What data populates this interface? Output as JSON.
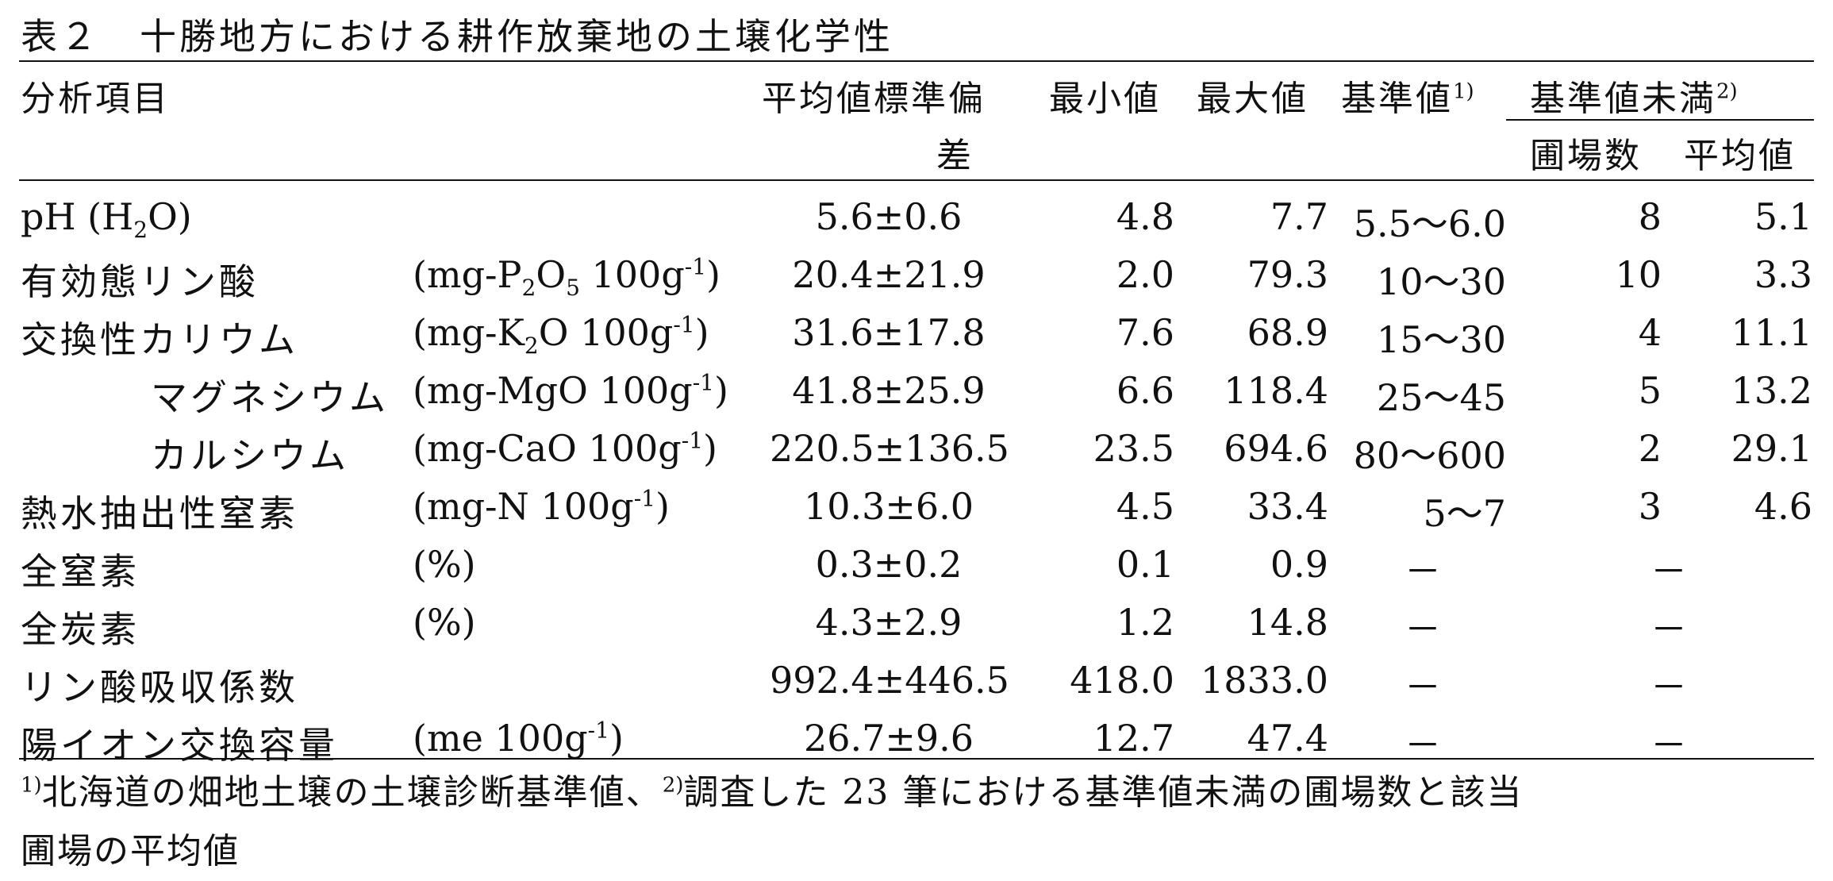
{
  "title": "表２　十勝地方における耕作放棄地の土壌化学性",
  "headers": {
    "item": "分析項目",
    "mean_sd_1": "平均値標準偏",
    "mean_sd_2": "差",
    "min": "最小値",
    "max": "最大値",
    "standard": "基準値",
    "standard_note": "1)",
    "below": "基準値未満",
    "below_note": "2)",
    "fields": "圃場数",
    "avg": "平均値"
  },
  "rows": [
    {
      "name": "pH (H",
      "name_sub": "2",
      "name_end": "O)",
      "unit_pre": "",
      "unit_sub": "",
      "unit_mid": "",
      "unit_sub2": "",
      "unit_post": "",
      "unit_sup": "",
      "unit_end": "",
      "mean": "5.6±0.6",
      "min": "4.8",
      "max": "7.7",
      "std": "5.5～6.0",
      "n": "8",
      "avg": "5.1",
      "indent": false,
      "latin": true
    },
    {
      "name": "有効態リン酸",
      "name_sub": "",
      "name_end": "",
      "unit_pre": "(mg-P",
      "unit_sub": "2",
      "unit_mid": "O",
      "unit_sub2": "5",
      "unit_post": " 100g",
      "unit_sup": "-1",
      "unit_end": ")",
      "mean": "20.4±21.9",
      "min": "2.0",
      "max": "79.3",
      "std": "10～30",
      "n": "10",
      "avg": "3.3",
      "indent": false,
      "latin": false
    },
    {
      "name": "交換性カリウム",
      "name_sub": "",
      "name_end": "",
      "unit_pre": "(mg-K",
      "unit_sub": "2",
      "unit_mid": "O",
      "unit_sub2": "",
      "unit_post": " 100g",
      "unit_sup": "-1",
      "unit_end": ")",
      "mean": "31.6±17.8",
      "min": "7.6",
      "max": "68.9",
      "std": "15～30",
      "n": "4",
      "avg": "11.1",
      "indent": false,
      "latin": false
    },
    {
      "name": "マグネシウム",
      "name_sub": "",
      "name_end": "",
      "unit_pre": "(mg-MgO 100g",
      "unit_sub": "",
      "unit_mid": "",
      "unit_sub2": "",
      "unit_post": "",
      "unit_sup": "-1",
      "unit_end": ")",
      "mean": "41.8±25.9",
      "min": "6.6",
      "max": "118.4",
      "std": "25～45",
      "n": "5",
      "avg": "13.2",
      "indent": true,
      "latin": false
    },
    {
      "name": "カルシウム",
      "name_sub": "",
      "name_end": "",
      "unit_pre": "(mg-CaO 100g",
      "unit_sub": "",
      "unit_mid": "",
      "unit_sub2": "",
      "unit_post": "",
      "unit_sup": "-1",
      "unit_end": ")",
      "mean": "220.5±136.5",
      "min": "23.5",
      "max": "694.6",
      "std": "80～600",
      "n": "2",
      "avg": "29.1",
      "indent": true,
      "latin": false
    },
    {
      "name": "熱水抽出性窒素",
      "name_sub": "",
      "name_end": "",
      "unit_pre": "(mg-N 100g",
      "unit_sub": "",
      "unit_mid": "",
      "unit_sub2": "",
      "unit_post": "",
      "unit_sup": "-1",
      "unit_end": ")",
      "mean": "10.3±6.0",
      "min": "4.5",
      "max": "33.4",
      "std": "5～7",
      "n": "3",
      "avg": "4.6",
      "indent": false,
      "latin": false
    },
    {
      "name": "全窒素",
      "name_sub": "",
      "name_end": "",
      "unit_pre": "(%)",
      "unit_sub": "",
      "unit_mid": "",
      "unit_sub2": "",
      "unit_post": "",
      "unit_sup": "",
      "unit_end": "",
      "mean": "0.3±0.2",
      "min": "0.1",
      "max": "0.9",
      "std": "－",
      "n": "－",
      "avg": "",
      "indent": false,
      "latin": false
    },
    {
      "name": "全炭素",
      "name_sub": "",
      "name_end": "",
      "unit_pre": "(%)",
      "unit_sub": "",
      "unit_mid": "",
      "unit_sub2": "",
      "unit_post": "",
      "unit_sup": "",
      "unit_end": "",
      "mean": "4.3±2.9",
      "min": "1.2",
      "max": "14.8",
      "std": "－",
      "n": "－",
      "avg": "",
      "indent": false,
      "latin": false
    },
    {
      "name": "リン酸吸収係数",
      "name_sub": "",
      "name_end": "",
      "unit_pre": "",
      "unit_sub": "",
      "unit_mid": "",
      "unit_sub2": "",
      "unit_post": "",
      "unit_sup": "",
      "unit_end": "",
      "mean": "992.4±446.5",
      "min": "418.0",
      "max": "1833.0",
      "std": "－",
      "n": "－",
      "avg": "",
      "indent": false,
      "latin": false
    },
    {
      "name": "陽イオン交換容量",
      "name_sub": "",
      "name_end": "",
      "unit_pre": "(me 100g",
      "unit_sub": "",
      "unit_mid": "",
      "unit_sub2": "",
      "unit_post": "",
      "unit_sup": "-1",
      "unit_end": ")",
      "mean": "26.7±9.6",
      "min": "12.7",
      "max": "47.4",
      "std": "－",
      "n": "－",
      "avg": "",
      "indent": false,
      "latin": false
    }
  ],
  "footnote": {
    "mark1": "1)",
    "text1": "北海道の畑地土壌の土壌診断基準値、",
    "mark2": "2)",
    "text2": "調査した 23 筆における基準値未満の圃場数と該当",
    "line2": "圃場の平均値"
  }
}
